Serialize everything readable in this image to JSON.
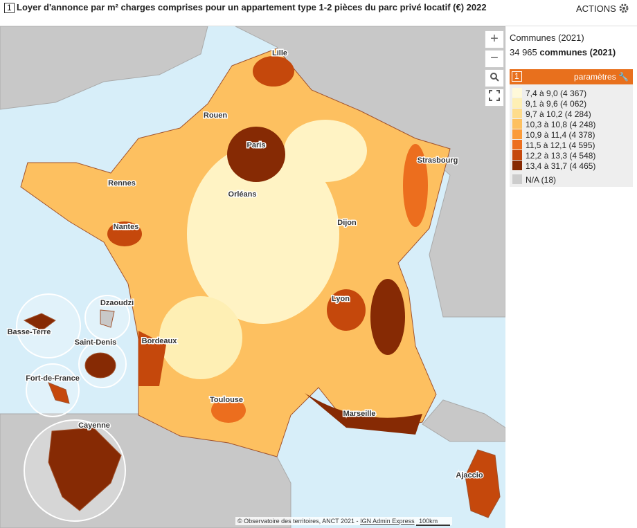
{
  "header": {
    "number": "1",
    "title": "Loyer d'annonce par m² charges comprises pour un appartement type 1-2 pièces du parc privé locatif (€) 2022",
    "actions": "ACTIONS"
  },
  "map": {
    "controls": [
      "+",
      "−"
    ],
    "cities": [
      "Lille",
      "Rouen",
      "Paris",
      "Strasbourg",
      "Rennes",
      "Orléans",
      "Nantes",
      "Dijon",
      "Dzaoudzi",
      "Lyon",
      "Basse-Terre",
      "Saint-Denis",
      "Bordeaux",
      "Fort-de-France",
      "Toulouse",
      "Marseille",
      "Cayenne",
      "Ajaccio"
    ],
    "attribution": "© Observatoire des territoires, ANCT 2021 -",
    "attribution_link": "IGN Admin Express",
    "scale": "100km"
  },
  "panel": {
    "layer": "Communes (2021)",
    "count": "34 965",
    "count_label": "communes (2021)",
    "legend_number": "1",
    "legend_action": "paramètres",
    "items": [
      {
        "label": "7,4 à 9,0 (4 367)",
        "color": "#fff9d9"
      },
      {
        "label": "9,1 à 9,6 (4 062)",
        "color": "#feefb4"
      },
      {
        "label": "9,7 à 10,2 (4 284)",
        "color": "#fedc8c"
      },
      {
        "label": "10,3 à 10,8 (4 248)",
        "color": "#fdc060"
      },
      {
        "label": "10,9 à 11,4 (4 378)",
        "color": "#fb9b3a"
      },
      {
        "label": "11,5 à 12,1 (4 595)",
        "color": "#ec6e1e"
      },
      {
        "label": "12,2 à 13,3 (4 548)",
        "color": "#c5480c"
      },
      {
        "label": "13,4 à 31,7 (4 465)",
        "color": "#862a04"
      }
    ],
    "na": {
      "label": "N/A (18)",
      "color": "#cccccc"
    }
  }
}
